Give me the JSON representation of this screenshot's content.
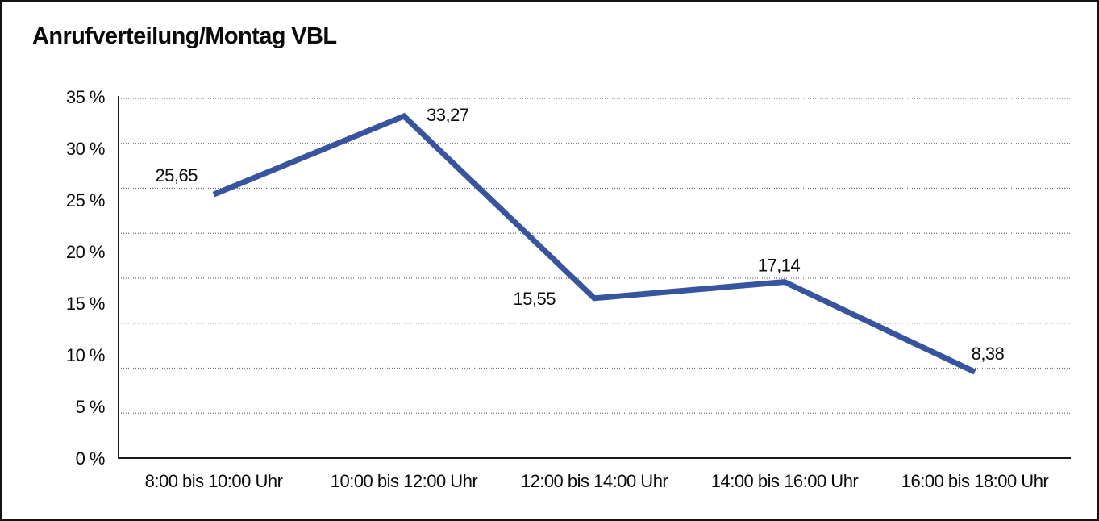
{
  "frame": {
    "background": "#ffffff",
    "border_color": "#141414"
  },
  "chart_data": {
    "type": "line",
    "title": "Anrufverteilung/Montag VBL",
    "categories": [
      "8:00 bis 10:00 Uhr",
      "10:00 bis 12:00 Uhr",
      "12:00 bis 14:00 Uhr",
      "14:00 bis 16:00 Uhr",
      "16:00 bis 18:00 Uhr"
    ],
    "series": [
      {
        "values": [
          25.65,
          33.27,
          15.55,
          17.14,
          8.38
        ],
        "point_labels": [
          "25,65",
          "33,27",
          "15,55",
          "17,14",
          "8,38"
        ],
        "color": "#37549F",
        "line_width": 7,
        "markers": "none"
      }
    ],
    "y_axis": {
      "min": 0,
      "max": 35,
      "tick_labels": [
        "35 %",
        "30 %",
        "25 %",
        "20 %",
        "15 %",
        "10 %",
        "5 %",
        "0 %"
      ]
    },
    "x_axis": {
      "label_position": "below-baseline"
    },
    "grid": {
      "style": "dotted",
      "color": "#6e6e6e",
      "dotted_line_count": 8
    },
    "axis_color": "#1a1a1a",
    "legend": "none",
    "text_color": "#0a0a0a"
  }
}
